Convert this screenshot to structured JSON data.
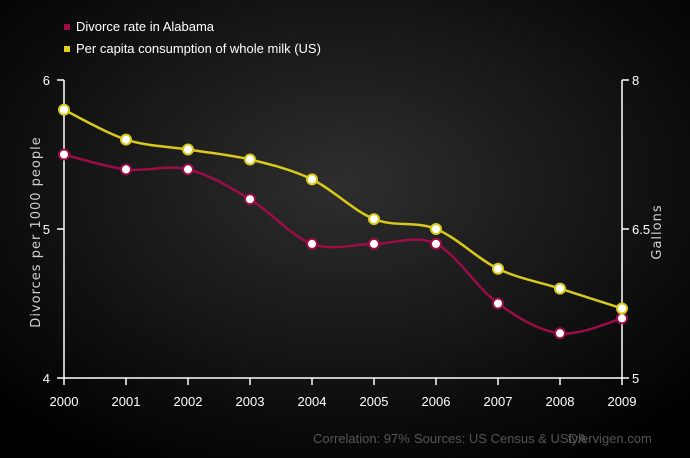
{
  "chart_data": {
    "type": "line",
    "x": [
      "2000",
      "2001",
      "2002",
      "2003",
      "2004",
      "2005",
      "2006",
      "2007",
      "2008",
      "2009"
    ],
    "series": [
      {
        "name": "Divorce rate in Alabama",
        "axis": "left",
        "color": "#9c0c48",
        "values": [
          5.5,
          5.4,
          5.4,
          5.2,
          4.9,
          4.9,
          4.9,
          4.5,
          4.3,
          4.4
        ]
      },
      {
        "name": "Per capita consumption of whole milk (US)",
        "axis": "right",
        "color": "#d8c91a",
        "values": [
          7.7,
          7.4,
          7.3,
          7.2,
          7.0,
          6.6,
          6.5,
          6.1,
          5.9,
          5.7
        ]
      }
    ],
    "y_left": {
      "label": "Divorces per 1000 people",
      "ticks": [
        "4",
        "5",
        "6"
      ],
      "range": [
        4,
        6
      ]
    },
    "y_right": {
      "label": "Gallons",
      "ticks": [
        "5",
        "6.5",
        "8"
      ],
      "range": [
        5,
        8
      ]
    },
    "legend_position": "top-left",
    "grid": false
  },
  "footer": {
    "correlation": "Correlation: 97%",
    "sources": "Sources: US Census & USDA",
    "site": "tylervigen.com"
  }
}
